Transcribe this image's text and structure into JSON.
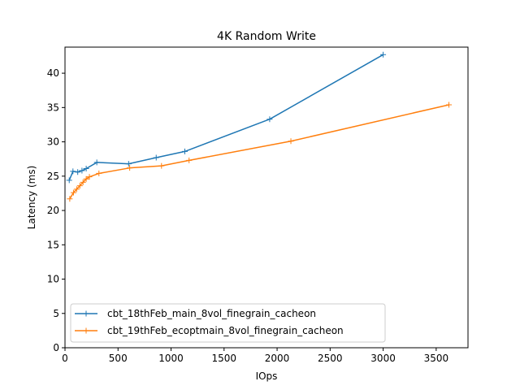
{
  "chart_data": {
    "type": "line",
    "title": "4K  Random Write",
    "xlabel": "IOps",
    "ylabel": "Latency (ms)",
    "xlim": [
      0,
      3800
    ],
    "ylim": [
      0,
      43.8
    ],
    "xticks": [
      0,
      500,
      1000,
      1500,
      2000,
      2500,
      3000,
      3500
    ],
    "yticks": [
      0,
      5,
      10,
      15,
      20,
      25,
      30,
      35,
      40
    ],
    "grid": false,
    "legend": "lower-left",
    "marker": "+",
    "series": [
      {
        "name": "cbt_18thFeb_main_8vol_finegrain_cacheon",
        "color": "#1f77b4",
        "points": [
          [
            40,
            24.4
          ],
          [
            75,
            25.7
          ],
          [
            120,
            25.6
          ],
          [
            160,
            25.8
          ],
          [
            200,
            26.1
          ],
          [
            300,
            27.0
          ],
          [
            600,
            26.8
          ],
          [
            860,
            27.7
          ],
          [
            1130,
            28.6
          ],
          [
            1930,
            33.3
          ],
          [
            3000,
            42.7
          ]
        ]
      },
      {
        "name": "cbt_19thFeb_ecoptmain_8vol_finegrain_cacheon",
        "color": "#ff7f0e",
        "points": [
          [
            45,
            21.7
          ],
          [
            80,
            22.6
          ],
          [
            110,
            23.1
          ],
          [
            140,
            23.6
          ],
          [
            170,
            24.1
          ],
          [
            200,
            24.6
          ],
          [
            230,
            24.9
          ],
          [
            320,
            25.4
          ],
          [
            610,
            26.2
          ],
          [
            910,
            26.5
          ],
          [
            1170,
            27.3
          ],
          [
            2130,
            30.1
          ],
          [
            3620,
            35.4
          ]
        ]
      }
    ]
  }
}
